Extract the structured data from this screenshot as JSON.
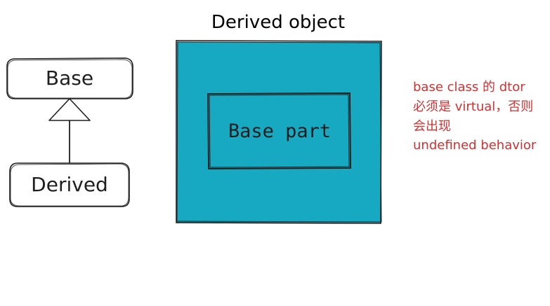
{
  "uml": {
    "base_label": "Base",
    "derived_label": "Derived"
  },
  "object_diagram": {
    "title": "Derived object",
    "inner_label": "Base part"
  },
  "note": {
    "lines": [
      "base class 的 dtor",
      "必须是 virtual，否则",
      "会出现",
      "undefined behavior"
    ]
  },
  "colors": {
    "fill": "#17a9c1",
    "stroke": "#1e1e1e",
    "note": "#d63030",
    "background": "#ffffff"
  }
}
